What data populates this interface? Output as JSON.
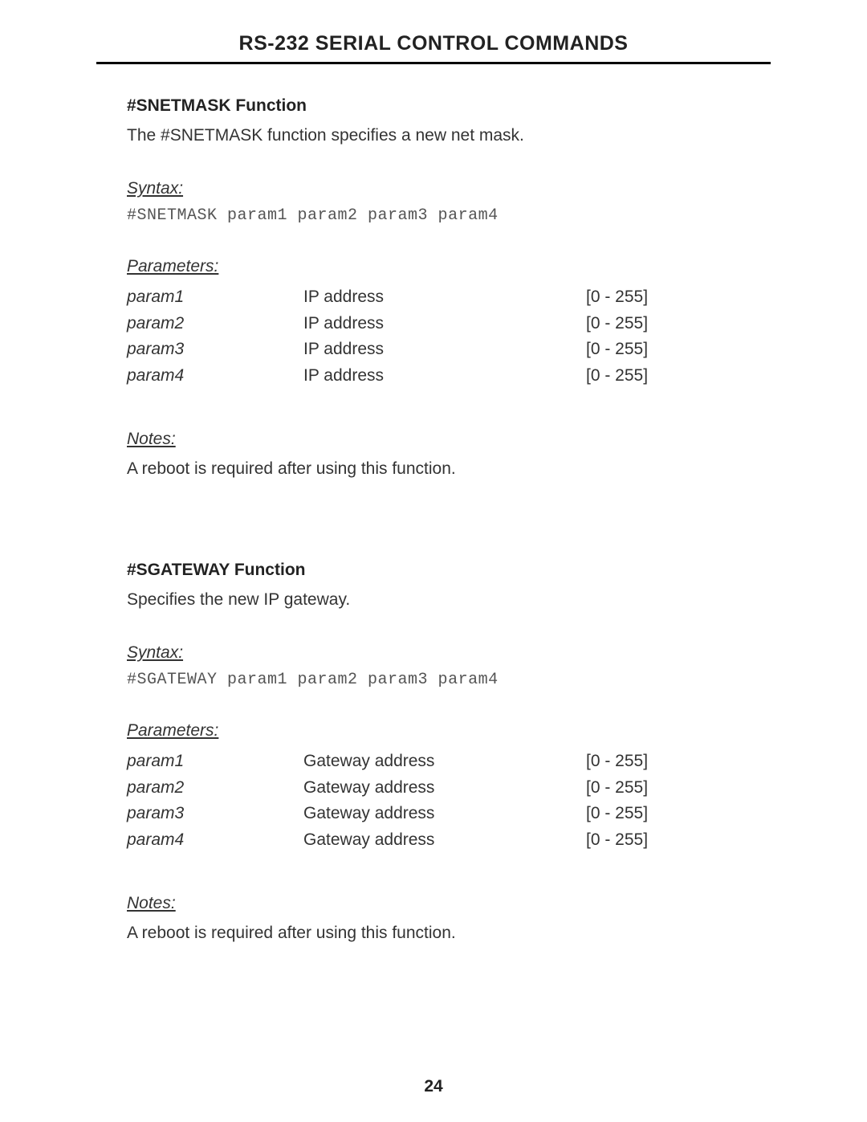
{
  "page_title": "RS-232 SERIAL CONTROL COMMANDS",
  "page_number": "24",
  "sections": [
    {
      "heading": "#SNETMASK Function",
      "description": "The #SNETMASK function specifies a new net mask.",
      "syntax_label": "Syntax:",
      "syntax_code": "#SNETMASK param1 param2 param3 param4",
      "parameters_label": "Parameters:",
      "parameters": [
        {
          "name": "param1",
          "desc": "IP address",
          "range": "[0 - 255]"
        },
        {
          "name": "param2",
          "desc": "IP address",
          "range": "[0 - 255]"
        },
        {
          "name": "param3",
          "desc": "IP address",
          "range": "[0 - 255]"
        },
        {
          "name": "param4",
          "desc": "IP address",
          "range": "[0 - 255]"
        }
      ],
      "notes_label": "Notes:",
      "notes_text": "A reboot is required after using this function."
    },
    {
      "heading": "#SGATEWAY Function",
      "description": "Specifies the new IP gateway.",
      "syntax_label": "Syntax:",
      "syntax_code": "#SGATEWAY param1 param2 param3 param4",
      "parameters_label": "Parameters:",
      "parameters": [
        {
          "name": "param1",
          "desc": "Gateway address",
          "range": "[0 - 255]"
        },
        {
          "name": "param2",
          "desc": "Gateway address",
          "range": "[0 - 255]"
        },
        {
          "name": "param3",
          "desc": "Gateway address",
          "range": "[0 - 255]"
        },
        {
          "name": "param4",
          "desc": "Gateway address",
          "range": "[0 - 255]"
        }
      ],
      "notes_label": "Notes:",
      "notes_text": "A reboot is required after using this function."
    }
  ]
}
